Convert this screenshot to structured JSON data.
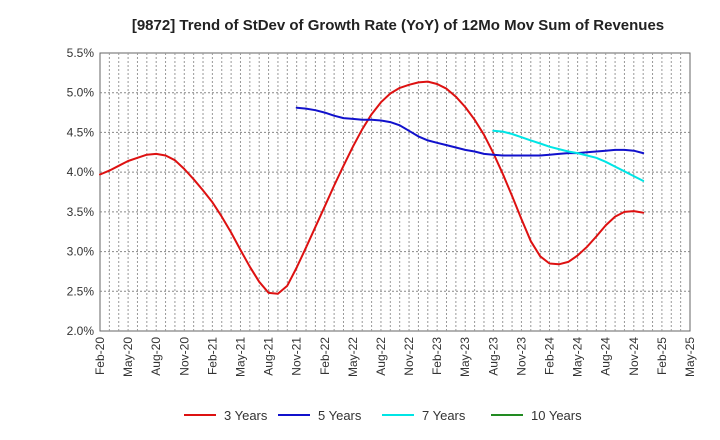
{
  "chart_data": {
    "type": "line",
    "title": "[9872]  Trend of StDev of Growth Rate (YoY) of 12Mo Mov Sum of Revenues",
    "xlabel": "",
    "ylabel": "",
    "ylim": [
      2.0,
      5.5
    ],
    "y_ticks": [
      "2.0%",
      "2.5%",
      "3.0%",
      "3.5%",
      "4.0%",
      "4.5%",
      "5.0%",
      "5.5%"
    ],
    "x_ticks": [
      "Feb-20",
      "May-20",
      "Aug-20",
      "Nov-20",
      "Feb-21",
      "May-21",
      "Aug-21",
      "Nov-21",
      "Feb-22",
      "May-22",
      "Aug-22",
      "Nov-22",
      "Feb-23",
      "May-23",
      "Aug-23",
      "Nov-23",
      "Feb-24",
      "May-24",
      "Aug-24",
      "Nov-24",
      "Feb-25",
      "May-25"
    ],
    "grid": true,
    "legend_position": "bottom",
    "series": [
      {
        "name": "3 Years",
        "color": "#dd1111",
        "points": [
          [
            0,
            3.97
          ],
          [
            1,
            4.02
          ],
          [
            2,
            4.08
          ],
          [
            3,
            4.14
          ],
          [
            4,
            4.18
          ],
          [
            5,
            4.22
          ],
          [
            6,
            4.23
          ],
          [
            7,
            4.21
          ],
          [
            8,
            4.15
          ],
          [
            9,
            4.04
          ],
          [
            10,
            3.91
          ],
          [
            11,
            3.77
          ],
          [
            12,
            3.62
          ],
          [
            13,
            3.44
          ],
          [
            14,
            3.24
          ],
          [
            15,
            3.02
          ],
          [
            16,
            2.81
          ],
          [
            17,
            2.62
          ],
          [
            18,
            2.48
          ],
          [
            19,
            2.47
          ],
          [
            20,
            2.57
          ],
          [
            21,
            2.8
          ],
          [
            22,
            3.05
          ],
          [
            23,
            3.31
          ],
          [
            24,
            3.57
          ],
          [
            25,
            3.83
          ],
          [
            26,
            4.08
          ],
          [
            27,
            4.32
          ],
          [
            28,
            4.54
          ],
          [
            29,
            4.73
          ],
          [
            30,
            4.88
          ],
          [
            31,
            4.99
          ],
          [
            32,
            5.06
          ],
          [
            33,
            5.1
          ],
          [
            34,
            5.13
          ],
          [
            35,
            5.14
          ],
          [
            36,
            5.11
          ],
          [
            37,
            5.05
          ],
          [
            38,
            4.95
          ],
          [
            39,
            4.82
          ],
          [
            40,
            4.66
          ],
          [
            41,
            4.47
          ],
          [
            42,
            4.24
          ],
          [
            43,
            3.98
          ],
          [
            44,
            3.7
          ],
          [
            45,
            3.41
          ],
          [
            46,
            3.13
          ],
          [
            47,
            2.94
          ],
          [
            48,
            2.85
          ],
          [
            49,
            2.84
          ],
          [
            50,
            2.87
          ],
          [
            51,
            2.95
          ],
          [
            52,
            3.06
          ],
          [
            53,
            3.19
          ],
          [
            54,
            3.33
          ],
          [
            55,
            3.44
          ],
          [
            56,
            3.5
          ],
          [
            57,
            3.51
          ],
          [
            58,
            3.49
          ]
        ]
      },
      {
        "name": "5 Years",
        "color": "#1111cc",
        "points": [
          [
            21,
            4.81
          ],
          [
            22,
            4.8
          ],
          [
            23,
            4.78
          ],
          [
            24,
            4.75
          ],
          [
            25,
            4.71
          ],
          [
            26,
            4.68
          ],
          [
            27,
            4.67
          ],
          [
            28,
            4.66
          ],
          [
            29,
            4.66
          ],
          [
            30,
            4.65
          ],
          [
            31,
            4.63
          ],
          [
            32,
            4.59
          ],
          [
            33,
            4.52
          ],
          [
            34,
            4.45
          ],
          [
            35,
            4.4
          ],
          [
            36,
            4.37
          ],
          [
            37,
            4.34
          ],
          [
            38,
            4.31
          ],
          [
            39,
            4.28
          ],
          [
            40,
            4.26
          ],
          [
            41,
            4.23
          ],
          [
            42,
            4.22
          ],
          [
            43,
            4.21
          ],
          [
            44,
            4.21
          ],
          [
            45,
            4.21
          ],
          [
            46,
            4.21
          ],
          [
            47,
            4.21
          ],
          [
            48,
            4.22
          ],
          [
            49,
            4.23
          ],
          [
            50,
            4.24
          ],
          [
            51,
            4.24
          ],
          [
            52,
            4.25
          ],
          [
            53,
            4.26
          ],
          [
            54,
            4.27
          ],
          [
            55,
            4.28
          ],
          [
            56,
            4.28
          ],
          [
            57,
            4.27
          ],
          [
            58,
            4.24
          ]
        ]
      },
      {
        "name": "7 Years",
        "color": "#00e5e5",
        "points": [
          [
            42,
            4.52
          ],
          [
            43,
            4.51
          ],
          [
            44,
            4.48
          ],
          [
            45,
            4.44
          ],
          [
            46,
            4.4
          ],
          [
            47,
            4.36
          ],
          [
            48,
            4.32
          ],
          [
            49,
            4.29
          ],
          [
            50,
            4.26
          ],
          [
            51,
            4.24
          ],
          [
            52,
            4.21
          ],
          [
            53,
            4.18
          ],
          [
            54,
            4.13
          ],
          [
            55,
            4.07
          ],
          [
            56,
            4.01
          ],
          [
            57,
            3.95
          ],
          [
            58,
            3.89
          ]
        ]
      },
      {
        "name": "10 Years",
        "color": "#228b22",
        "points": []
      }
    ]
  }
}
